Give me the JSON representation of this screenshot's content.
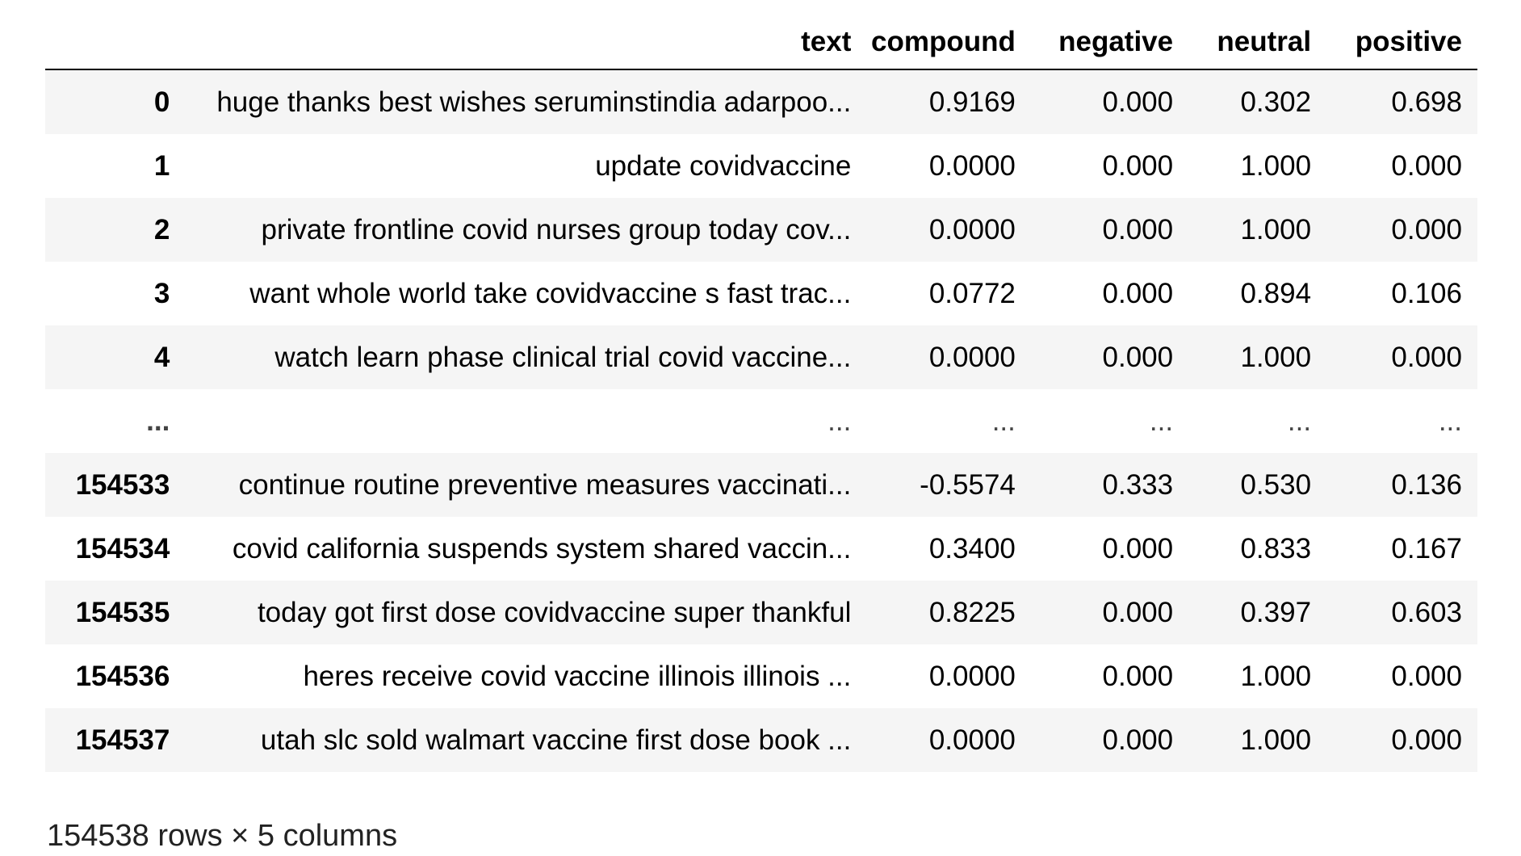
{
  "table": {
    "index_header": "",
    "columns": [
      "text",
      "compound",
      "negative",
      "neutral",
      "positive"
    ],
    "rows": [
      {
        "index": "0",
        "text": "huge thanks best wishes seruminstindia adarpoo...",
        "compound": "0.9169",
        "negative": "0.000",
        "neutral": "0.302",
        "positive": "0.698"
      },
      {
        "index": "1",
        "text": "update covidvaccine",
        "compound": "0.0000",
        "negative": "0.000",
        "neutral": "1.000",
        "positive": "0.000"
      },
      {
        "index": "2",
        "text": "private frontline covid nurses group today cov...",
        "compound": "0.0000",
        "negative": "0.000",
        "neutral": "1.000",
        "positive": "0.000"
      },
      {
        "index": "3",
        "text": "want whole world take covidvaccine s fast trac...",
        "compound": "0.0772",
        "negative": "0.000",
        "neutral": "0.894",
        "positive": "0.106"
      },
      {
        "index": "4",
        "text": "watch learn phase clinical trial covid vaccine...",
        "compound": "0.0000",
        "negative": "0.000",
        "neutral": "1.000",
        "positive": "0.000"
      },
      {
        "index": "...",
        "text": "...",
        "compound": "...",
        "negative": "...",
        "neutral": "...",
        "positive": "..."
      },
      {
        "index": "154533",
        "text": "continue routine preventive measures vaccinati...",
        "compound": "-0.5574",
        "negative": "0.333",
        "neutral": "0.530",
        "positive": "0.136"
      },
      {
        "index": "154534",
        "text": "covid california suspends system shared vaccin...",
        "compound": "0.3400",
        "negative": "0.000",
        "neutral": "0.833",
        "positive": "0.167"
      },
      {
        "index": "154535",
        "text": "today got first dose covidvaccine super thankful",
        "compound": "0.8225",
        "negative": "0.000",
        "neutral": "0.397",
        "positive": "0.603"
      },
      {
        "index": "154536",
        "text": "heres receive covid vaccine illinois illinois ...",
        "compound": "0.0000",
        "negative": "0.000",
        "neutral": "1.000",
        "positive": "0.000"
      },
      {
        "index": "154537",
        "text": "utah slc sold walmart vaccine first dose book ...",
        "compound": "0.0000",
        "negative": "0.000",
        "neutral": "1.000",
        "positive": "0.000"
      }
    ]
  },
  "summary": "154538 rows × 5 columns"
}
